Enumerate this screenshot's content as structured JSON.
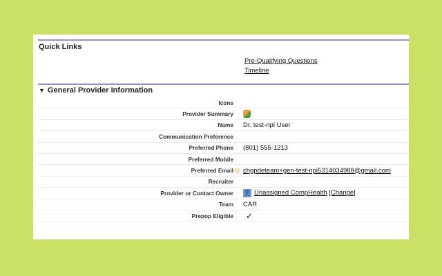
{
  "quick_links": {
    "title": "Quick Links",
    "links": [
      "Pre-Qualifying Questions",
      "Timeline"
    ]
  },
  "section": {
    "title": "General Provider Information",
    "fields": [
      {
        "label": "Icons",
        "value": ""
      },
      {
        "label": "Provider Summary",
        "icon": "provider-summary-icon"
      },
      {
        "label": "Name",
        "value": "Dr. test-npi User"
      },
      {
        "label": "Communication Preference",
        "value": ""
      },
      {
        "label": "Preferred Phone",
        "value": "(801) 555-1213"
      },
      {
        "label": "Preferred Mobile",
        "value": ""
      },
      {
        "label": "Preferred Email",
        "value": "chgpdeteam+gen-test-npi5314034988@gmail.com"
      },
      {
        "label": "Recruiter",
        "value": ""
      },
      {
        "label": "Provider or Contact Owner",
        "value": "Unassigned CompHealth",
        "action": "[Change]"
      },
      {
        "label": "Team",
        "value": "CAR"
      },
      {
        "label": "Prepop Eligible",
        "value": "✓",
        "checked": true
      }
    ]
  },
  "colors": {
    "background": "#c9e265",
    "accent_rule": "#9b8fd6"
  }
}
